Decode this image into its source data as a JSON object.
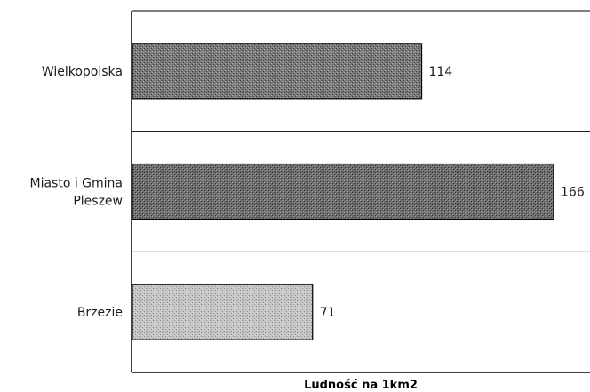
{
  "chart_data": {
    "type": "bar",
    "orientation": "horizontal",
    "categories": [
      "Wielkopolska",
      "Miasto i Gmina\nPleszew",
      "Brzezie"
    ],
    "values": [
      114,
      166,
      71
    ],
    "data_labels": [
      "114",
      "166",
      "71"
    ],
    "xlabel": "Ludność na 1km2",
    "xlim": [
      0,
      180
    ],
    "grid": "horizontal separators between categories",
    "legend": "none",
    "colors": [
      "#707070",
      "#6a6a6a",
      "#bdbdbd"
    ]
  }
}
